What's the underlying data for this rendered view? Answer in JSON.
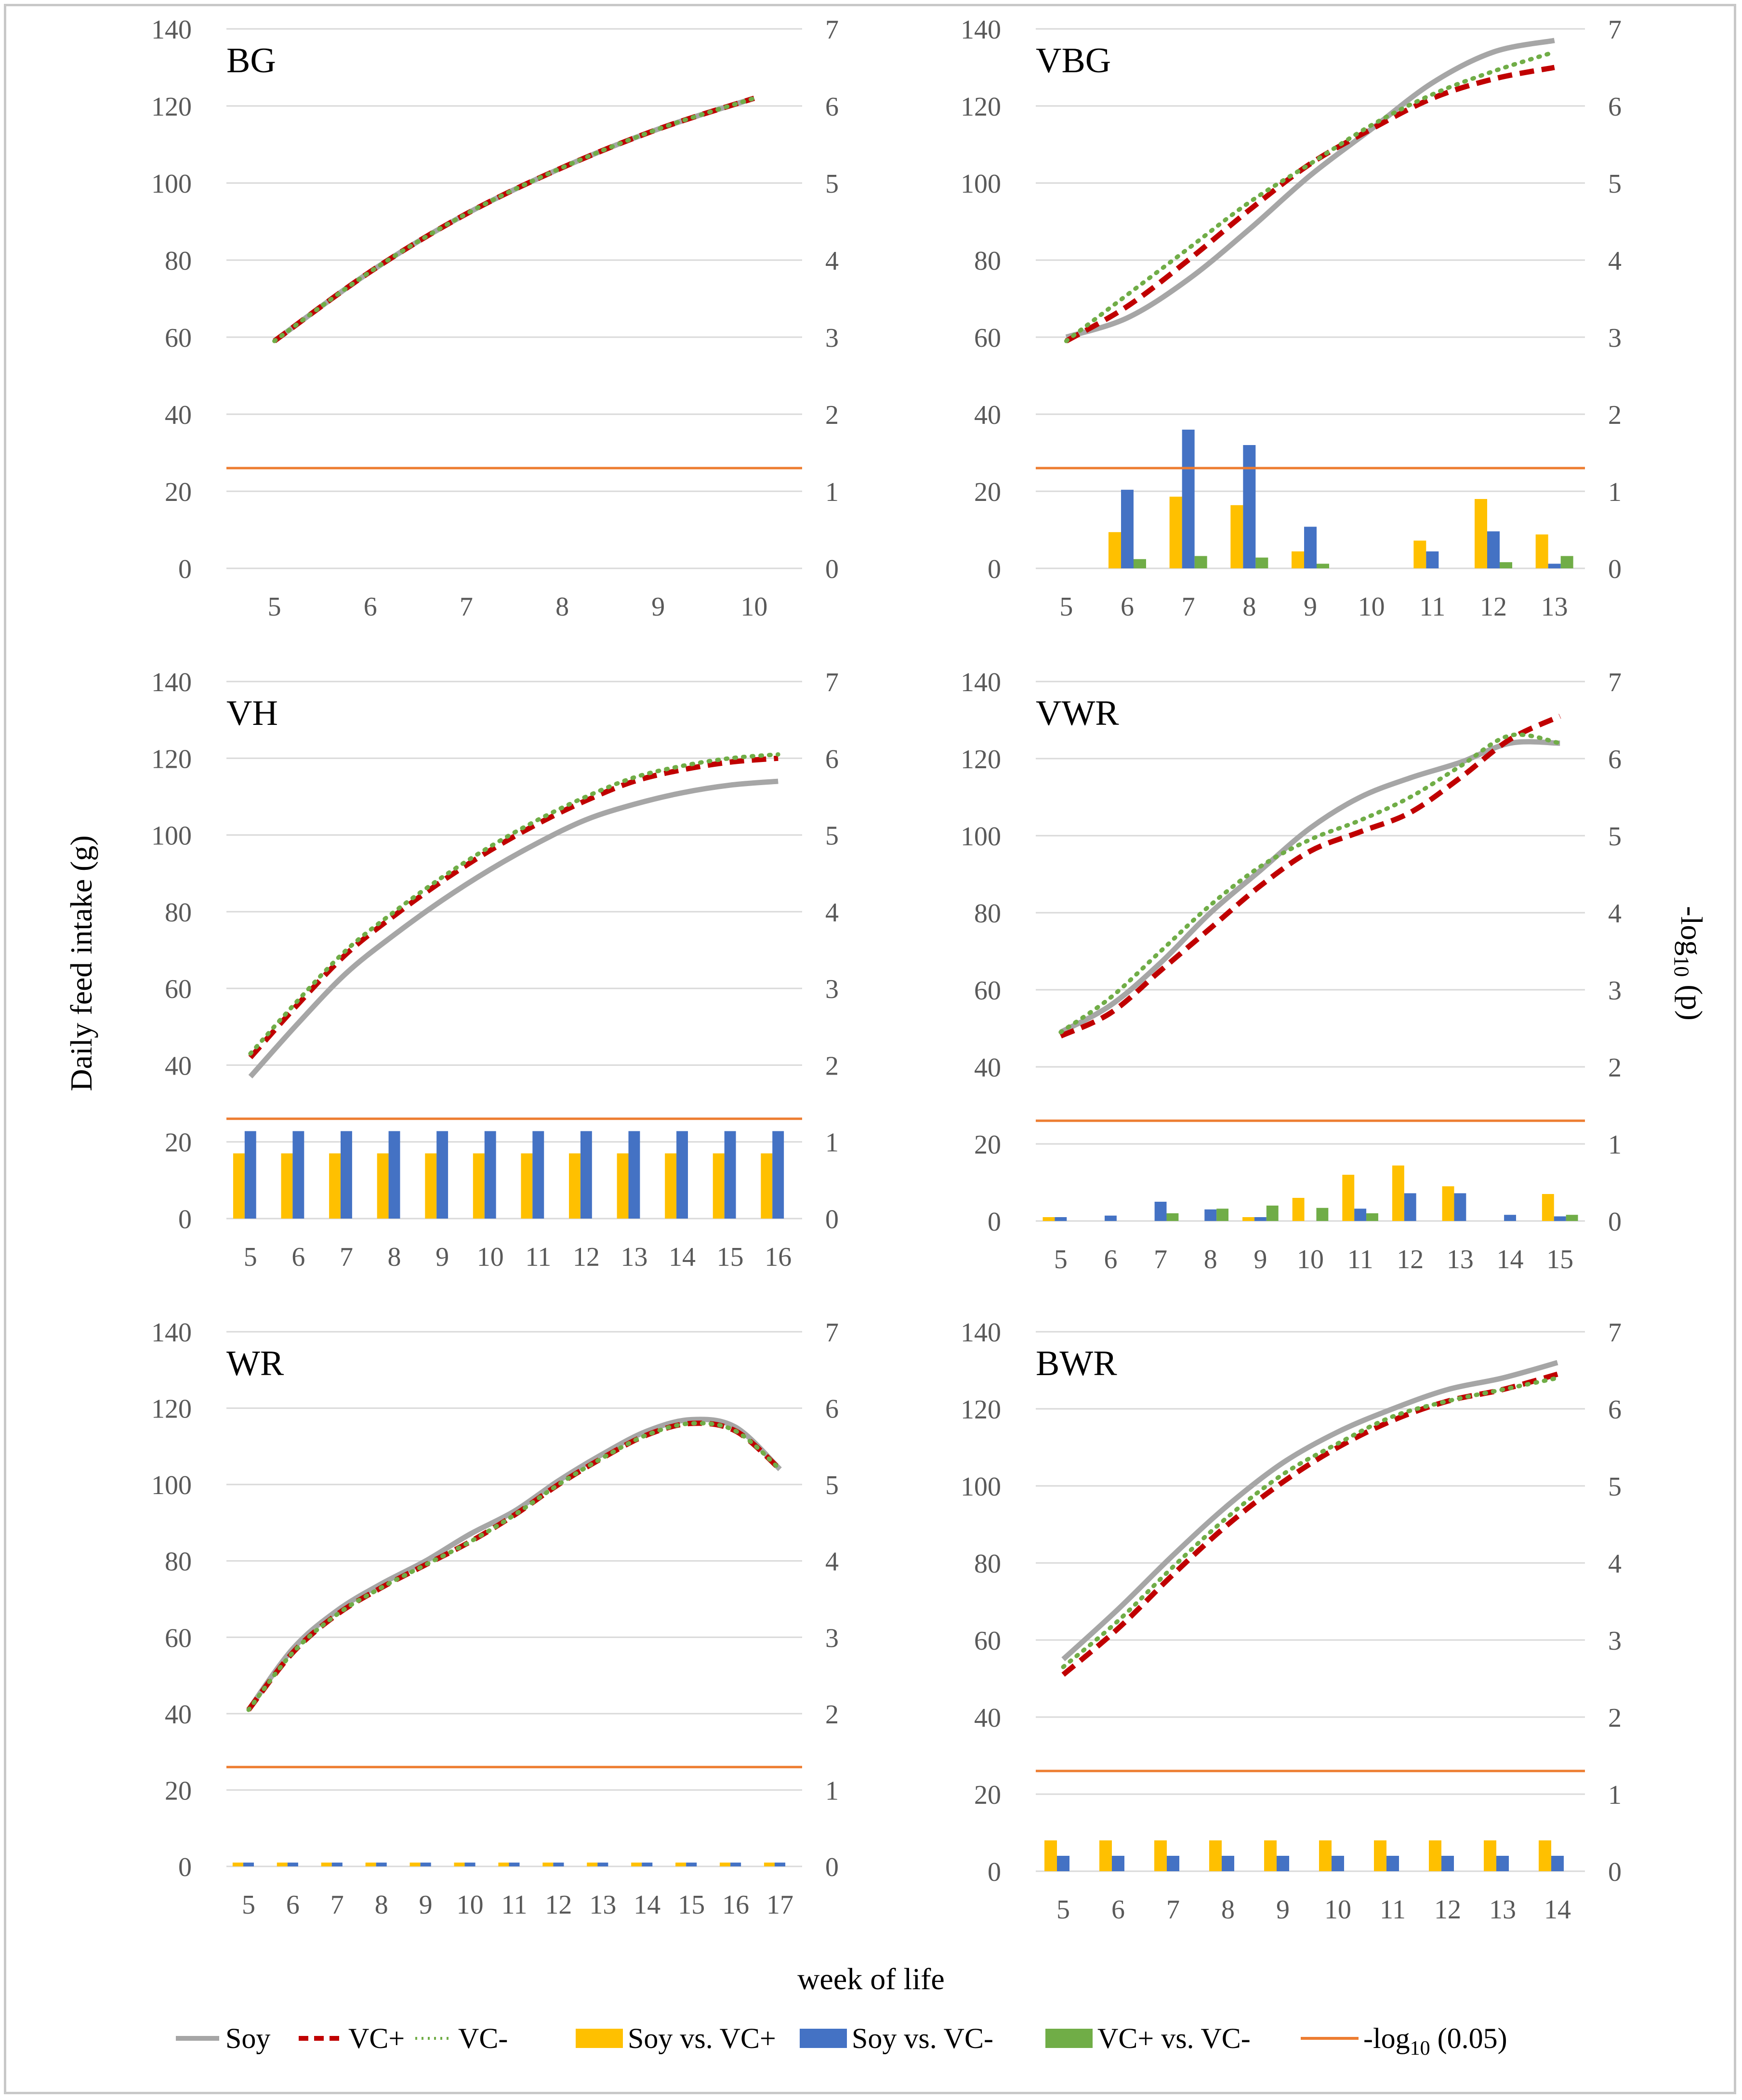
{
  "figure": {
    "ylabel_left": "Daily feed intake (g)",
    "ylabel_right_prefix": "-log",
    "ylabel_right_sub": "10",
    "ylabel_right_suffix": " (p)",
    "xlabel": "week of life"
  },
  "legend": [
    {
      "key": "soy",
      "label": "Soy",
      "kind": "line",
      "color": "#a6a6a6",
      "style": "solid"
    },
    {
      "key": "vcp",
      "label": "VC+",
      "kind": "line",
      "color": "#c00000",
      "style": "dashed"
    },
    {
      "key": "vcm",
      "label": "VC-",
      "kind": "line",
      "color": "#70ad47",
      "style": "dotted"
    },
    {
      "key": "b1",
      "label": "Soy vs. VC+",
      "kind": "bar",
      "color": "#ffc000"
    },
    {
      "key": "b2",
      "label": "Soy vs. VC-",
      "kind": "bar",
      "color": "#4472c4"
    },
    {
      "key": "b3",
      "label": "VC+ vs. VC-",
      "kind": "bar",
      "color": "#70ad47"
    },
    {
      "key": "thr",
      "label_prefix": "-log",
      "label_sub": "10",
      "label_suffix": " (0.05)",
      "kind": "threshold",
      "color": "#ed7d31"
    }
  ],
  "colors": {
    "soy": "#a6a6a6",
    "vcp": "#c00000",
    "vcm": "#70ad47",
    "b1": "#ffc000",
    "b2": "#4472c4",
    "b3": "#70ad47",
    "thr": "#ed7d31",
    "grid": "#d9d9d9",
    "tick": "#595959"
  },
  "chart_data": [
    {
      "type": "line+bar",
      "title": "BG",
      "x": [
        5,
        6,
        7,
        8,
        9,
        10
      ],
      "y_left": {
        "min": 0,
        "max": 140,
        "step": 20
      },
      "y_right": {
        "min": 0,
        "max": 7,
        "step": 1
      },
      "threshold": 1.301,
      "series": [
        {
          "name": "Soy",
          "axis": "left",
          "values": [
            59,
            77,
            92,
            104,
            114,
            122
          ]
        },
        {
          "name": "VC+",
          "axis": "left",
          "values": [
            59,
            77,
            92,
            104,
            114,
            122
          ]
        },
        {
          "name": "VC-",
          "axis": "left",
          "values": [
            59,
            77,
            92,
            104,
            114,
            122
          ]
        }
      ],
      "bars": [
        {
          "name": "Soy vs. VC+",
          "axis": "right",
          "values": [
            0,
            0,
            0,
            0,
            0,
            0
          ]
        },
        {
          "name": "Soy vs. VC-",
          "axis": "right",
          "values": [
            0,
            0,
            0,
            0,
            0,
            0
          ]
        },
        {
          "name": "VC+ vs. VC-",
          "axis": "right",
          "values": [
            0,
            0,
            0,
            0,
            0,
            0
          ]
        }
      ]
    },
    {
      "type": "line+bar",
      "title": "VBG",
      "x": [
        5,
        6,
        7,
        8,
        9,
        10,
        11,
        12,
        13
      ],
      "y_left": {
        "min": 0,
        "max": 140,
        "step": 20
      },
      "y_right": {
        "min": 0,
        "max": 7,
        "step": 1
      },
      "threshold": 1.301,
      "series": [
        {
          "name": "Soy",
          "axis": "left",
          "values": [
            60,
            65,
            75,
            88,
            102,
            114,
            126,
            134,
            137
          ]
        },
        {
          "name": "VC+",
          "axis": "left",
          "values": [
            59,
            68,
            80,
            93,
            105,
            114,
            122,
            127,
            130
          ]
        },
        {
          "name": "VC-",
          "axis": "left",
          "values": [
            59,
            71,
            83,
            95,
            105,
            115,
            123,
            129,
            134
          ]
        }
      ],
      "bars": [
        {
          "name": "Soy vs. VC+",
          "axis": "right",
          "values": [
            0,
            0.47,
            0.93,
            0.82,
            0.22,
            0,
            0.36,
            0.9,
            0.44
          ]
        },
        {
          "name": "Soy vs. VC-",
          "axis": "right",
          "values": [
            0,
            1.02,
            1.8,
            1.6,
            0.54,
            0,
            0.22,
            0.48,
            0.06
          ]
        },
        {
          "name": "VC+ vs. VC-",
          "axis": "right",
          "values": [
            0,
            0.12,
            0.16,
            0.14,
            0.06,
            0,
            0,
            0.08,
            0.16
          ]
        }
      ]
    },
    {
      "type": "line+bar",
      "title": "VH",
      "x": [
        5,
        6,
        7,
        8,
        9,
        10,
        11,
        12,
        13,
        14,
        15,
        16
      ],
      "y_left": {
        "min": 0,
        "max": 140,
        "step": 20
      },
      "y_right": {
        "min": 0,
        "max": 7,
        "step": 1
      },
      "threshold": 1.301,
      "series": [
        {
          "name": "Soy",
          "axis": "left",
          "values": [
            37,
            51,
            64,
            74,
            83,
            91,
            98,
            104,
            108,
            111,
            113,
            114
          ]
        },
        {
          "name": "VC+",
          "axis": "left",
          "values": [
            42,
            56,
            69,
            79,
            88,
            96,
            103,
            109,
            114,
            117,
            119,
            120
          ]
        },
        {
          "name": "VC-",
          "axis": "left",
          "values": [
            43,
            57,
            70,
            80,
            89,
            97,
            104,
            110,
            115,
            118,
            120,
            121
          ]
        }
      ],
      "bars": [
        {
          "name": "Soy vs. VC+",
          "axis": "right",
          "values": [
            0.85,
            0.85,
            0.85,
            0.85,
            0.85,
            0.85,
            0.85,
            0.85,
            0.85,
            0.85,
            0.85,
            0.85
          ]
        },
        {
          "name": "Soy vs. VC-",
          "axis": "right",
          "values": [
            1.14,
            1.14,
            1.14,
            1.14,
            1.14,
            1.14,
            1.14,
            1.14,
            1.14,
            1.14,
            1.14,
            1.14
          ]
        },
        {
          "name": "VC+ vs. VC-",
          "axis": "right",
          "values": [
            0,
            0,
            0,
            0,
            0,
            0,
            0,
            0,
            0,
            0,
            0,
            0
          ]
        }
      ]
    },
    {
      "type": "line+bar",
      "title": "VWR",
      "x": [
        5,
        6,
        7,
        8,
        9,
        10,
        11,
        12,
        13,
        14,
        15
      ],
      "y_left": {
        "min": 0,
        "max": 140,
        "step": 20
      },
      "y_right": {
        "min": 0,
        "max": 7,
        "step": 1
      },
      "threshold": 1.301,
      "series": [
        {
          "name": "Soy",
          "axis": "left",
          "values": [
            49,
            56,
            67,
            80,
            91,
            102,
            110,
            115,
            119,
            124,
            124
          ]
        },
        {
          "name": "VC+",
          "axis": "left",
          "values": [
            48,
            54,
            65,
            76,
            87,
            96,
            101,
            106,
            115,
            125,
            131
          ]
        },
        {
          "name": "VC-",
          "axis": "left",
          "values": [
            49,
            58,
            70,
            82,
            92,
            99,
            104,
            110,
            118,
            126,
            124
          ]
        }
      ],
      "bars": [
        {
          "name": "Soy vs. VC+",
          "axis": "right",
          "values": [
            0.05,
            0,
            0,
            0,
            0.05,
            0.3,
            0.6,
            0.72,
            0.45,
            0,
            0.35
          ]
        },
        {
          "name": "Soy vs. VC-",
          "axis": "right",
          "values": [
            0.05,
            0.07,
            0.25,
            0.15,
            0.05,
            0,
            0.16,
            0.36,
            0.36,
            0.08,
            0.06
          ]
        },
        {
          "name": "VC+ vs. VC-",
          "axis": "right",
          "values": [
            0,
            0,
            0.1,
            0.16,
            0.2,
            0.17,
            0.1,
            0,
            0,
            0,
            0.08
          ]
        }
      ]
    },
    {
      "type": "line+bar",
      "title": "WR",
      "x": [
        5,
        6,
        7,
        8,
        9,
        10,
        11,
        12,
        13,
        14,
        15,
        16,
        17
      ],
      "y_left": {
        "min": 0,
        "max": 140,
        "step": 20
      },
      "y_right": {
        "min": 0,
        "max": 7,
        "step": 1
      },
      "threshold": 1.301,
      "series": [
        {
          "name": "Soy",
          "axis": "left",
          "values": [
            41,
            57,
            67,
            74,
            80,
            87,
            93,
            101,
            108,
            114,
            117,
            115,
            104
          ]
        },
        {
          "name": "VC+",
          "axis": "left",
          "values": [
            41,
            56,
            66,
            73,
            79,
            85,
            92,
            100,
            107,
            113,
            116,
            114,
            104
          ]
        },
        {
          "name": "VC-",
          "axis": "left",
          "values": [
            41,
            56,
            66,
            73,
            79,
            85,
            92,
            100,
            107,
            113,
            116,
            114,
            104
          ]
        }
      ],
      "bars": [
        {
          "name": "Soy vs. VC+",
          "axis": "right",
          "values": [
            0.05,
            0.05,
            0.05,
            0.05,
            0.05,
            0.05,
            0.05,
            0.05,
            0.05,
            0.05,
            0.05,
            0.05,
            0.05
          ]
        },
        {
          "name": "Soy vs. VC-",
          "axis": "right",
          "values": [
            0.05,
            0.05,
            0.05,
            0.05,
            0.05,
            0.05,
            0.05,
            0.05,
            0.05,
            0.05,
            0.05,
            0.05,
            0.05
          ]
        },
        {
          "name": "VC+ vs. VC-",
          "axis": "right",
          "values": [
            0,
            0,
            0,
            0,
            0,
            0,
            0,
            0,
            0,
            0,
            0,
            0,
            0
          ]
        }
      ]
    },
    {
      "type": "line+bar",
      "title": "BWR",
      "x": [
        5,
        6,
        7,
        8,
        9,
        10,
        11,
        12,
        13,
        14
      ],
      "y_left": {
        "min": 0,
        "max": 140,
        "step": 20
      },
      "y_right": {
        "min": 0,
        "max": 7,
        "step": 1
      },
      "threshold": 1.301,
      "series": [
        {
          "name": "Soy",
          "axis": "left",
          "values": [
            55,
            68,
            82,
            95,
            106,
            114,
            120,
            125,
            128,
            132
          ]
        },
        {
          "name": "VC+",
          "axis": "left",
          "values": [
            51,
            63,
            77,
            90,
            101,
            110,
            117,
            122,
            125,
            129
          ]
        },
        {
          "name": "VC-",
          "axis": "left",
          "values": [
            53,
            65,
            79,
            92,
            103,
            111,
            118,
            122,
            125,
            128
          ]
        }
      ],
      "bars": [
        {
          "name": "Soy vs. VC+",
          "axis": "right",
          "values": [
            0.4,
            0.4,
            0.4,
            0.4,
            0.4,
            0.4,
            0.4,
            0.4,
            0.4,
            0.4
          ]
        },
        {
          "name": "Soy vs. VC-",
          "axis": "right",
          "values": [
            0.2,
            0.2,
            0.2,
            0.2,
            0.2,
            0.2,
            0.2,
            0.2,
            0.2,
            0.2
          ]
        },
        {
          "name": "VC+ vs. VC-",
          "axis": "right",
          "values": [
            0,
            0,
            0,
            0,
            0,
            0,
            0,
            0,
            0,
            0
          ]
        }
      ]
    }
  ]
}
